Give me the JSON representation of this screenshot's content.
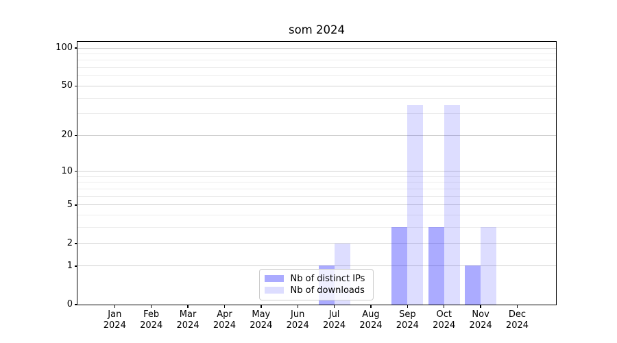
{
  "title": "som 2024",
  "chart_data": {
    "type": "bar",
    "title": "som 2024",
    "x_categories": [
      {
        "month": "Jan",
        "year": "2024"
      },
      {
        "month": "Feb",
        "year": "2024"
      },
      {
        "month": "Mar",
        "year": "2024"
      },
      {
        "month": "Apr",
        "year": "2024"
      },
      {
        "month": "May",
        "year": "2024"
      },
      {
        "month": "Jun",
        "year": "2024"
      },
      {
        "month": "Jul",
        "year": "2024"
      },
      {
        "month": "Aug",
        "year": "2024"
      },
      {
        "month": "Sep",
        "year": "2024"
      },
      {
        "month": "Oct",
        "year": "2024"
      },
      {
        "month": "Nov",
        "year": "2024"
      },
      {
        "month": "Dec",
        "year": "2024"
      }
    ],
    "series": [
      {
        "name": "Nb of distinct IPs",
        "color": "rgba(0,0,255,0.33)",
        "values": [
          0,
          0,
          0,
          0,
          0,
          0,
          1,
          0,
          3,
          3,
          1,
          0
        ]
      },
      {
        "name": "Nb of downloads",
        "color": "rgba(0,0,255,0.135)",
        "values": [
          0,
          0,
          0,
          0,
          0,
          0,
          2,
          0,
          35,
          35,
          3,
          0
        ]
      }
    ],
    "yscale": "log1p",
    "ylim": [
      0,
      112
    ],
    "y_major_ticks": [
      0,
      1,
      2,
      5,
      10,
      20,
      50,
      100
    ],
    "y_minor_gridlines": [
      3,
      4,
      6,
      7,
      8,
      9,
      30,
      40,
      60,
      70,
      80,
      90
    ],
    "grid": true,
    "legend_entries": [
      "Nb of distinct IPs",
      "Nb of downloads"
    ]
  }
}
